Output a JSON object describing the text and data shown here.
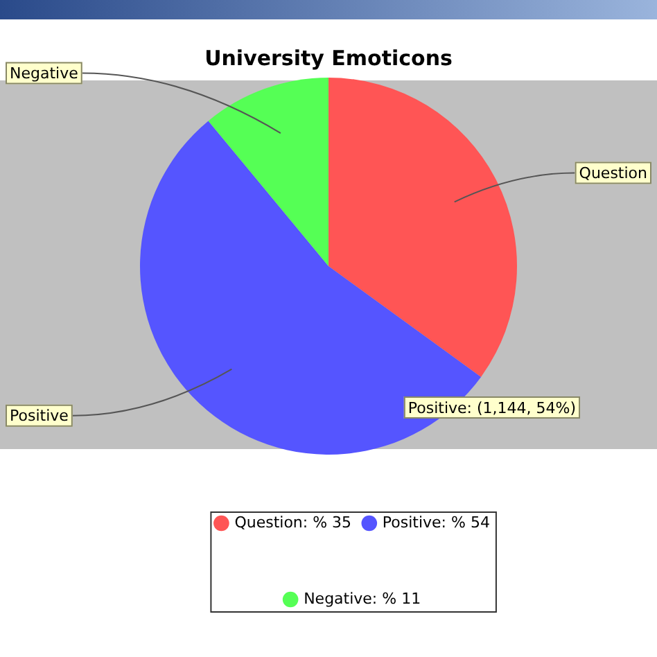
{
  "chart_data": {
    "type": "pie",
    "title": "University Emoticons",
    "categories": [
      "Question",
      "Positive",
      "Negative"
    ],
    "values": [
      35,
      54,
      11
    ],
    "value_labels": [
      ": % 35",
      ": % 54",
      ": % 11"
    ],
    "colors": [
      "#ff5555",
      "#5555ff",
      "#55ff55"
    ],
    "legend": "bottom",
    "annotations": [
      "Positive: (1,144, 54%)"
    ]
  }
}
